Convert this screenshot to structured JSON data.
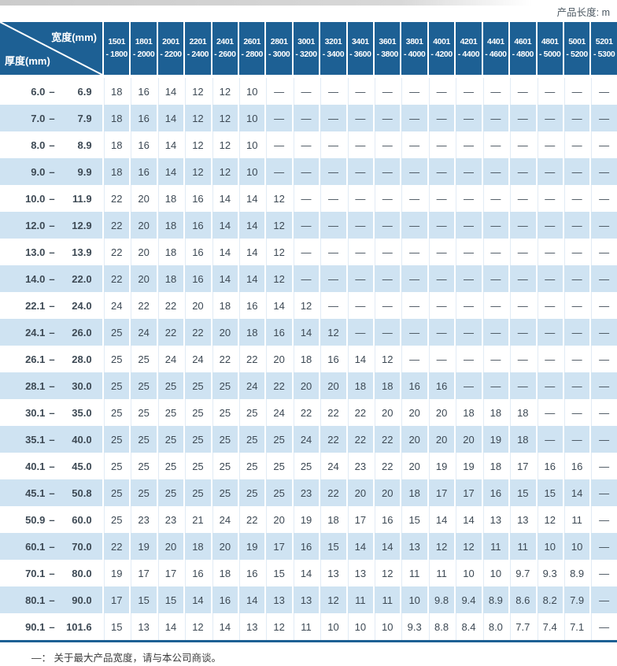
{
  "page": {
    "length_note": "产品长度: m",
    "footnote": "—： 关于最大产品宽度，请与本公司商谈。"
  },
  "colors": {
    "header_blue": "#1d6094",
    "stripe_blue": "#cfe3f2",
    "bottom_border_navy": "#1d6094",
    "text_dark": "#3d4954"
  },
  "table": {
    "corner": {
      "top_label": "宽度(mm)",
      "side_label": "厚度(mm)"
    },
    "empty_symbol": "—",
    "label_separator": "–",
    "columns": [
      {
        "line1": "1501",
        "line2": "- 1800"
      },
      {
        "line1": "1801",
        "line2": "- 2000"
      },
      {
        "line1": "2001",
        "line2": "- 2200"
      },
      {
        "line1": "2201",
        "line2": "- 2400"
      },
      {
        "line1": "2401",
        "line2": "- 2600"
      },
      {
        "line1": "2601",
        "line2": "- 2800"
      },
      {
        "line1": "2801",
        "line2": "- 3000"
      },
      {
        "line1": "3001",
        "line2": "- 3200"
      },
      {
        "line1": "3201",
        "line2": "- 3400"
      },
      {
        "line1": "3401",
        "line2": "- 3600"
      },
      {
        "line1": "3601",
        "line2": "- 3800"
      },
      {
        "line1": "3801",
        "line2": "- 4000"
      },
      {
        "line1": "4001",
        "line2": "- 4200"
      },
      {
        "line1": "4201",
        "line2": "- 4400"
      },
      {
        "line1": "4401",
        "line2": "- 4600"
      },
      {
        "line1": "4601",
        "line2": "- 4800"
      },
      {
        "line1": "4801",
        "line2": "- 5000"
      },
      {
        "line1": "5001",
        "line2": "- 5200"
      },
      {
        "line1": "5201",
        "line2": "- 5300"
      }
    ],
    "rows": [
      {
        "label": {
          "from": "6.0",
          "to": "6.9"
        },
        "values": [
          "18",
          "16",
          "14",
          "12",
          "12",
          "10",
          "—",
          "—",
          "—",
          "—",
          "—",
          "—",
          "—",
          "—",
          "—",
          "—",
          "—",
          "—",
          "—"
        ]
      },
      {
        "label": {
          "from": "7.0",
          "to": "7.9"
        },
        "values": [
          "18",
          "16",
          "14",
          "12",
          "12",
          "10",
          "—",
          "—",
          "—",
          "—",
          "—",
          "—",
          "—",
          "—",
          "—",
          "—",
          "—",
          "—",
          "—"
        ]
      },
      {
        "label": {
          "from": "8.0",
          "to": "8.9"
        },
        "values": [
          "18",
          "16",
          "14",
          "12",
          "12",
          "10",
          "—",
          "—",
          "—",
          "—",
          "—",
          "—",
          "—",
          "—",
          "—",
          "—",
          "—",
          "—",
          "—"
        ]
      },
      {
        "label": {
          "from": "9.0",
          "to": "9.9"
        },
        "values": [
          "18",
          "16",
          "14",
          "12",
          "12",
          "10",
          "—",
          "—",
          "—",
          "—",
          "—",
          "—",
          "—",
          "—",
          "—",
          "—",
          "—",
          "—",
          "—"
        ]
      },
      {
        "label": {
          "from": "10.0",
          "to": "11.9"
        },
        "values": [
          "22",
          "20",
          "18",
          "16",
          "14",
          "14",
          "12",
          "—",
          "—",
          "—",
          "—",
          "—",
          "—",
          "—",
          "—",
          "—",
          "—",
          "—",
          "—"
        ]
      },
      {
        "label": {
          "from": "12.0",
          "to": "12.9"
        },
        "values": [
          "22",
          "20",
          "18",
          "16",
          "14",
          "14",
          "12",
          "—",
          "—",
          "—",
          "—",
          "—",
          "—",
          "—",
          "—",
          "—",
          "—",
          "—",
          "—"
        ]
      },
      {
        "label": {
          "from": "13.0",
          "to": "13.9"
        },
        "values": [
          "22",
          "20",
          "18",
          "16",
          "14",
          "14",
          "12",
          "—",
          "—",
          "—",
          "—",
          "—",
          "—",
          "—",
          "—",
          "—",
          "—",
          "—",
          "—"
        ]
      },
      {
        "label": {
          "from": "14.0",
          "to": "22.0"
        },
        "values": [
          "22",
          "20",
          "18",
          "16",
          "14",
          "14",
          "12",
          "—",
          "—",
          "—",
          "—",
          "—",
          "—",
          "—",
          "—",
          "—",
          "—",
          "—",
          "—"
        ]
      },
      {
        "label": {
          "from": "22.1",
          "to": "24.0"
        },
        "values": [
          "24",
          "22",
          "22",
          "20",
          "18",
          "16",
          "14",
          "12",
          "—",
          "—",
          "—",
          "—",
          "—",
          "—",
          "—",
          "—",
          "—",
          "—",
          "—"
        ]
      },
      {
        "label": {
          "from": "24.1",
          "to": "26.0"
        },
        "values": [
          "25",
          "24",
          "22",
          "22",
          "20",
          "18",
          "16",
          "14",
          "12",
          "—",
          "—",
          "—",
          "—",
          "—",
          "—",
          "—",
          "—",
          "—",
          "—"
        ]
      },
      {
        "label": {
          "from": "26.1",
          "to": "28.0"
        },
        "values": [
          "25",
          "25",
          "24",
          "24",
          "22",
          "22",
          "20",
          "18",
          "16",
          "14",
          "12",
          "—",
          "—",
          "—",
          "—",
          "—",
          "—",
          "—",
          "—"
        ]
      },
      {
        "label": {
          "from": "28.1",
          "to": "30.0"
        },
        "values": [
          "25",
          "25",
          "25",
          "25",
          "25",
          "24",
          "22",
          "20",
          "20",
          "18",
          "18",
          "16",
          "16",
          "—",
          "—",
          "—",
          "—",
          "—",
          "—"
        ]
      },
      {
        "label": {
          "from": "30.1",
          "to": "35.0"
        },
        "values": [
          "25",
          "25",
          "25",
          "25",
          "25",
          "25",
          "24",
          "22",
          "22",
          "22",
          "20",
          "20",
          "20",
          "18",
          "18",
          "18",
          "—",
          "—",
          "—"
        ]
      },
      {
        "label": {
          "from": "35.1",
          "to": "40.0"
        },
        "values": [
          "25",
          "25",
          "25",
          "25",
          "25",
          "25",
          "25",
          "24",
          "22",
          "22",
          "22",
          "20",
          "20",
          "20",
          "19",
          "18",
          "—",
          "—",
          "—"
        ]
      },
      {
        "label": {
          "from": "40.1",
          "to": "45.0"
        },
        "values": [
          "25",
          "25",
          "25",
          "25",
          "25",
          "25",
          "25",
          "25",
          "24",
          "23",
          "22",
          "20",
          "19",
          "19",
          "18",
          "17",
          "16",
          "16",
          "—"
        ]
      },
      {
        "label": {
          "from": "45.1",
          "to": "50.8"
        },
        "values": [
          "25",
          "25",
          "25",
          "25",
          "25",
          "25",
          "25",
          "23",
          "22",
          "20",
          "20",
          "18",
          "17",
          "17",
          "16",
          "15",
          "15",
          "14",
          "—"
        ]
      },
      {
        "label": {
          "from": "50.9",
          "to": "60.0"
        },
        "values": [
          "25",
          "23",
          "23",
          "21",
          "24",
          "22",
          "20",
          "19",
          "18",
          "17",
          "16",
          "15",
          "14",
          "14",
          "13",
          "13",
          "12",
          "11",
          "—"
        ]
      },
      {
        "label": {
          "from": "60.1",
          "to": "70.0"
        },
        "values": [
          "22",
          "19",
          "20",
          "18",
          "20",
          "19",
          "17",
          "16",
          "15",
          "14",
          "14",
          "13",
          "12",
          "12",
          "11",
          "11",
          "10",
          "10",
          "—"
        ]
      },
      {
        "label": {
          "from": "70.1",
          "to": "80.0"
        },
        "values": [
          "19",
          "17",
          "17",
          "16",
          "18",
          "16",
          "15",
          "14",
          "13",
          "13",
          "12",
          "11",
          "11",
          "10",
          "10",
          "9.7",
          "9.3",
          "8.9",
          "—"
        ]
      },
      {
        "label": {
          "from": "80.1",
          "to": "90.0"
        },
        "values": [
          "17",
          "15",
          "15",
          "14",
          "16",
          "14",
          "13",
          "13",
          "12",
          "11",
          "11",
          "10",
          "9.8",
          "9.4",
          "8.9",
          "8.6",
          "8.2",
          "7.9",
          "—"
        ]
      },
      {
        "label": {
          "from": "90.1",
          "to": "101.6"
        },
        "values": [
          "15",
          "13",
          "14",
          "12",
          "14",
          "13",
          "12",
          "11",
          "10",
          "10",
          "10",
          "9.3",
          "8.8",
          "8.4",
          "8.0",
          "7.7",
          "7.4",
          "7.1",
          "—"
        ]
      }
    ]
  }
}
